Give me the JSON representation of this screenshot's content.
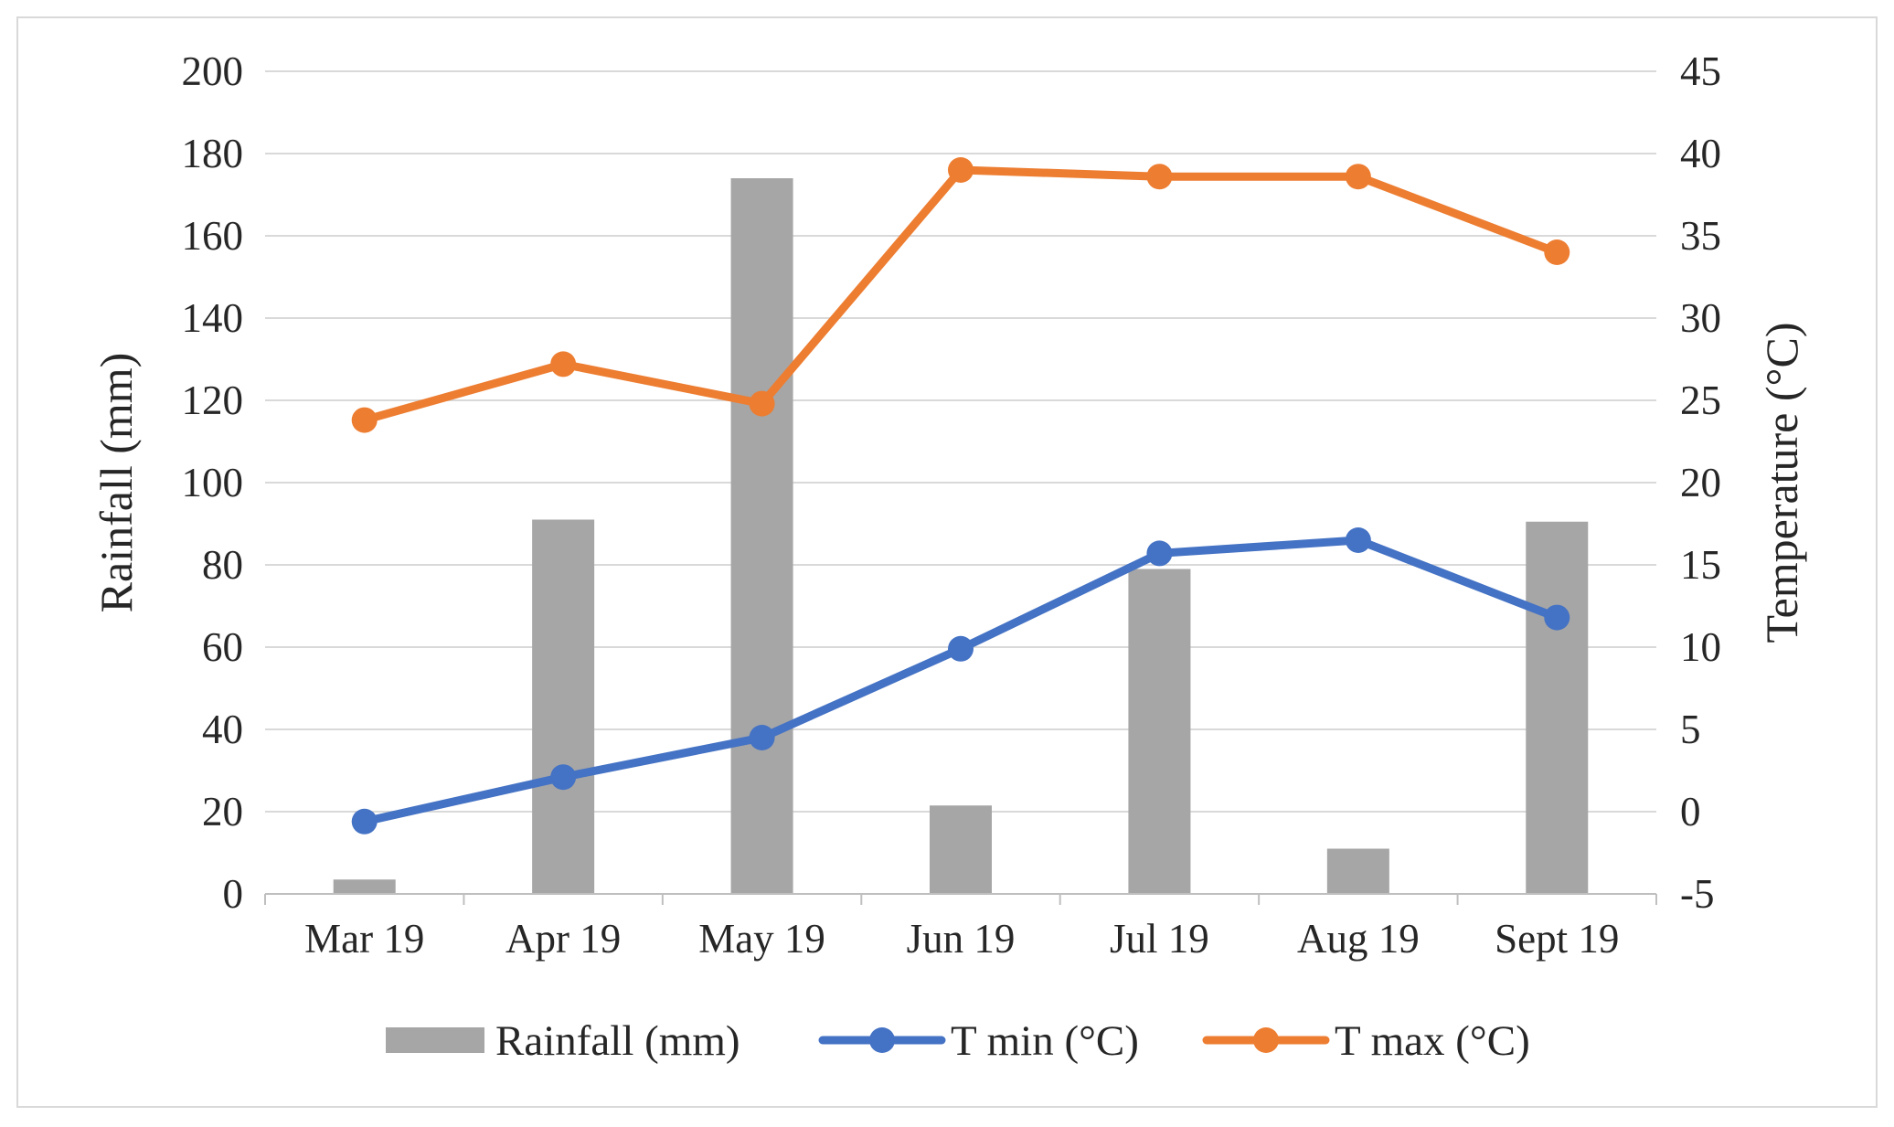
{
  "chart_data": {
    "type": "bar+line",
    "categories": [
      "Mar 19",
      "Apr 19",
      "May 19",
      "Jun 19",
      "Jul 19",
      "Aug 19",
      "Sept 19"
    ],
    "left_axis": {
      "label": "Rainfall (mm)",
      "range": [
        0,
        200
      ],
      "ticks": [
        0,
        20,
        40,
        60,
        80,
        100,
        120,
        140,
        160,
        180,
        200
      ]
    },
    "right_axis": {
      "label": "Temperature (°C)",
      "range": [
        -5,
        45
      ],
      "ticks": [
        -5,
        0,
        5,
        10,
        15,
        20,
        25,
        30,
        35,
        40,
        45
      ]
    },
    "series": [
      {
        "name": "Rainfall (mm)",
        "type": "bar",
        "axis": "left",
        "color": "#a6a6a6",
        "values": [
          3.5,
          91,
          174,
          21.5,
          79,
          11,
          90.5
        ]
      },
      {
        "name": "T min (°C)",
        "type": "line",
        "axis": "right",
        "color": "#4472c4",
        "values": [
          -0.6,
          2.1,
          4.5,
          9.9,
          15.7,
          16.5,
          11.8
        ]
      },
      {
        "name": "T max (°C)",
        "type": "line",
        "axis": "right",
        "color": "#ed7d31",
        "values": [
          23.8,
          27.2,
          24.8,
          39.0,
          38.6,
          38.6,
          34.0
        ]
      }
    ],
    "grid": true,
    "legend_position": "bottom"
  }
}
